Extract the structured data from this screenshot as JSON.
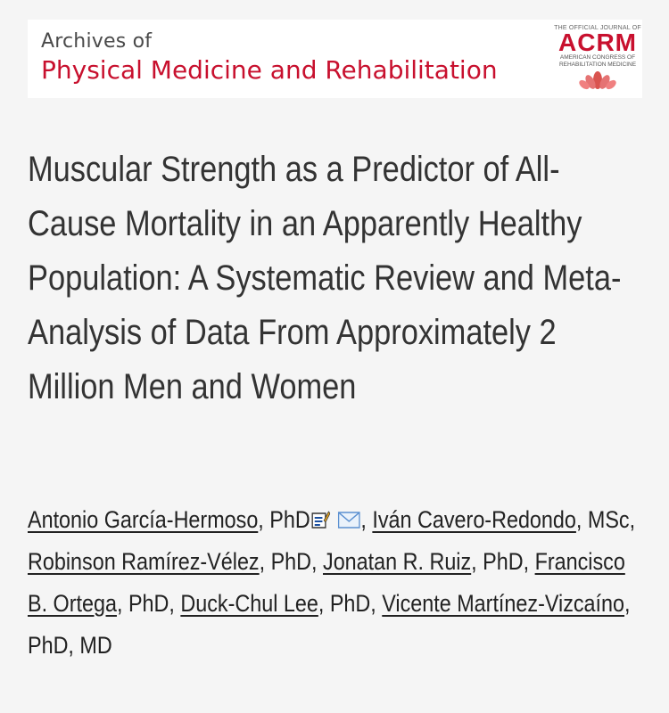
{
  "journal": {
    "pre": "Archives of",
    "name": "Physical Medicine and Rehabilitation",
    "acrm_top": "THE OFFICIAL JOURNAL OF",
    "acrm_name": "ACRM",
    "acrm_sub1": "AMERICAN CONGRESS OF",
    "acrm_sub2": "REHABILITATION MEDICINE"
  },
  "article": {
    "title": "Muscular Strength as a Predictor of All-Cause Mortality in an Apparently Healthy Population: A Systematic Review and Meta-Analysis of Data From Approximately 2 Million Men and Women"
  },
  "authors": [
    {
      "name": "Antonio García-Hermoso",
      "degree": ", PhD",
      "icons": [
        "contact-card-icon",
        "email-icon"
      ]
    },
    {
      "name": "Iván Cavero-Redondo",
      "degree": ", MSc"
    },
    {
      "name": "Robinson Ramírez-Vélez",
      "degree": ", PhD"
    },
    {
      "name": "Jonatan R. Ruiz",
      "degree": ", PhD"
    },
    {
      "name": "Francisco B. Ortega",
      "degree": ", PhD"
    },
    {
      "name": "Duck-Chul Lee",
      "degree": ", PhD"
    },
    {
      "name": "Vicente Martínez-Vizcaíno",
      "degree": ", PhD, MD"
    }
  ],
  "colors": {
    "brand_red": "#c8102e",
    "text": "#333333",
    "background": "#f5f5f5"
  }
}
